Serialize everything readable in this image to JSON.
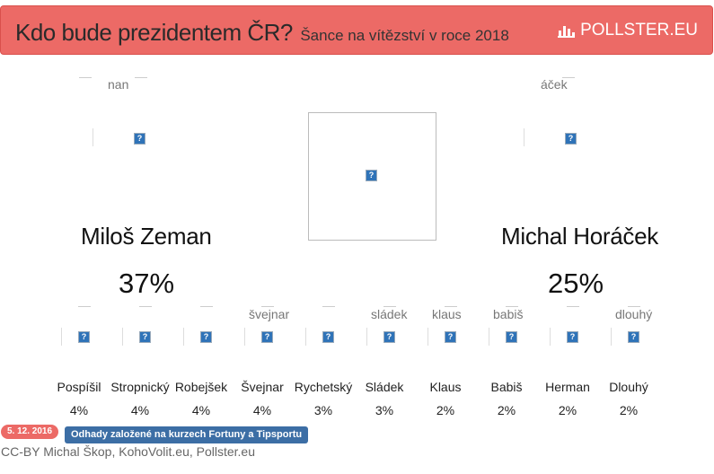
{
  "header": {
    "title": "Kdo bude prezidentem ČR?",
    "subtitle": "Šance na vítězství v roce 2018",
    "brand": "POLLSTER.EU",
    "brand_icon": "bar-chart-icon",
    "accent_color": "#ec6a66"
  },
  "top_candidates": [
    {
      "name": "Miloš Zeman",
      "percent": "37%",
      "img_alt": "nan"
    },
    {
      "name": "Michal Horáček",
      "percent": "25%",
      "img_alt": "áček"
    }
  ],
  "center_image": {
    "icon": "broken-image-icon"
  },
  "candidates": [
    {
      "name": "Pospíšil",
      "percent": "4%",
      "img_alt": ""
    },
    {
      "name": "Stropnický",
      "percent": "4%",
      "img_alt": ""
    },
    {
      "name": "Robejšek",
      "percent": "4%",
      "img_alt": ""
    },
    {
      "name": "Švejnar",
      "percent": "4%",
      "img_alt": "švejnar"
    },
    {
      "name": "Rychetský",
      "percent": "3%",
      "img_alt": ""
    },
    {
      "name": "Sládek",
      "percent": "3%",
      "img_alt": "sládek"
    },
    {
      "name": "Klaus",
      "percent": "2%",
      "img_alt": "klaus"
    },
    {
      "name": "Babiš",
      "percent": "2%",
      "img_alt": "babiš"
    },
    {
      "name": "Herman",
      "percent": "2%",
      "img_alt": ""
    },
    {
      "name": "Dlouhý",
      "percent": "2%",
      "img_alt": "dlouhý"
    }
  ],
  "footer": {
    "date": "5. 12. 2016",
    "note": "Odhady založené na kurzech Fortuny a Tipsportu",
    "credit": "CC-BY Michal Škop, KohoVolit.eu, Pollster.eu",
    "date_color": "#ec6a66",
    "note_color": "#3c6ea5"
  }
}
